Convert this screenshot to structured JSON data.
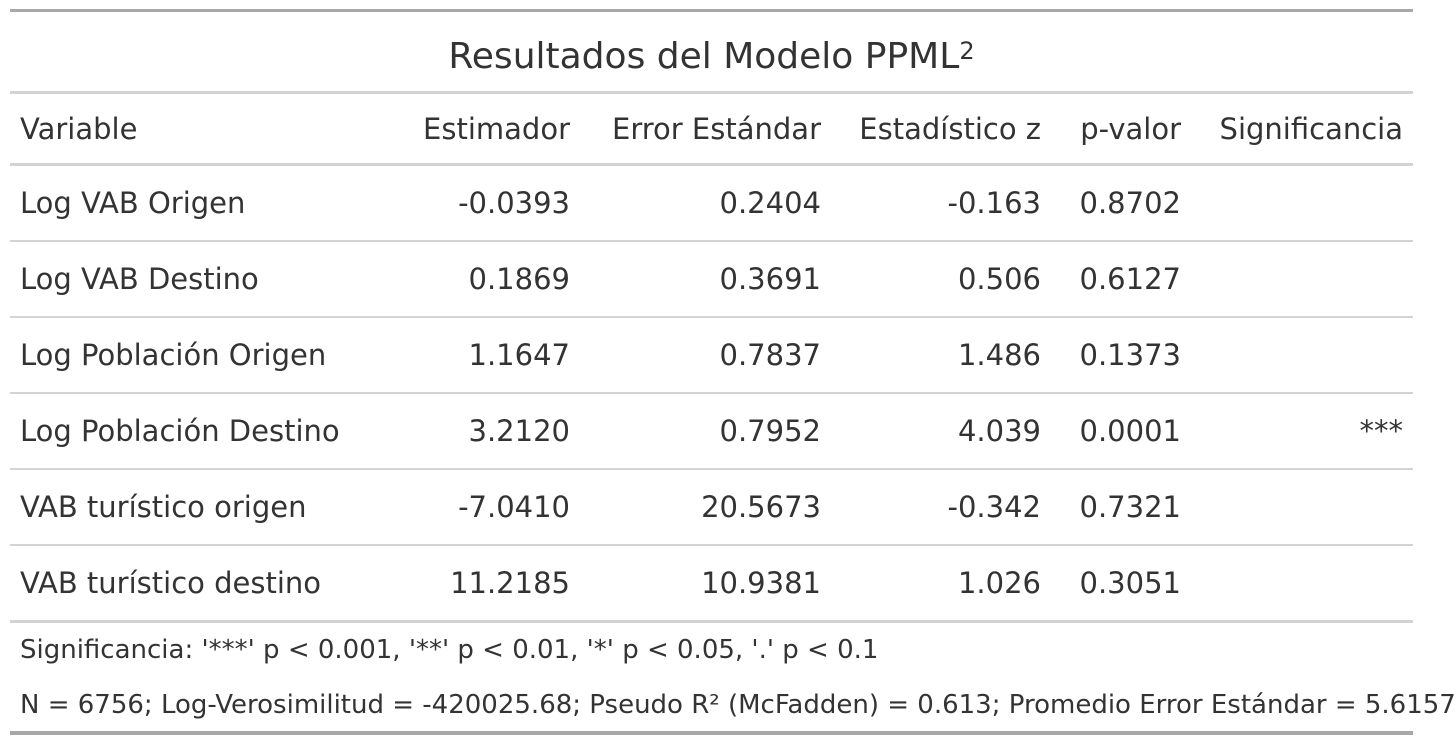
{
  "table": {
    "title": "Resultados del Modelo PPML",
    "title_superscript": "2",
    "headers": [
      "Variable",
      "Estimador",
      "Error Estándar",
      "Estadístico z",
      "p-valor",
      "Significancia"
    ],
    "rows": [
      [
        "Log VAB Origen",
        "-0.0393",
        "0.2404",
        "-0.163",
        "0.8702",
        ""
      ],
      [
        "Log VAB Destino",
        "0.1869",
        "0.3691",
        "0.506",
        "0.6127",
        ""
      ],
      [
        "Log Población Origen",
        "1.1647",
        "0.7837",
        "1.486",
        "0.1373",
        ""
      ],
      [
        "Log Población Destino",
        "3.2120",
        "0.7952",
        "4.039",
        "0.0001",
        "***"
      ],
      [
        "VAB turístico origen",
        "-7.0410",
        "20.5673",
        "-0.342",
        "0.7321",
        ""
      ],
      [
        "VAB turístico destino",
        "11.2185",
        "10.9381",
        "1.026",
        "0.3051",
        ""
      ]
    ],
    "footnotes": [
      "Significancia: '***' p < 0.001, '**' p < 0.01, '*' p < 0.05, '.' p < 0.1",
      "N = 6756; Log-Verosimilitud = -420025.68; Pseudo R² (McFadden) = 0.613; Promedio Error Estándar = 5.6157"
    ]
  }
}
